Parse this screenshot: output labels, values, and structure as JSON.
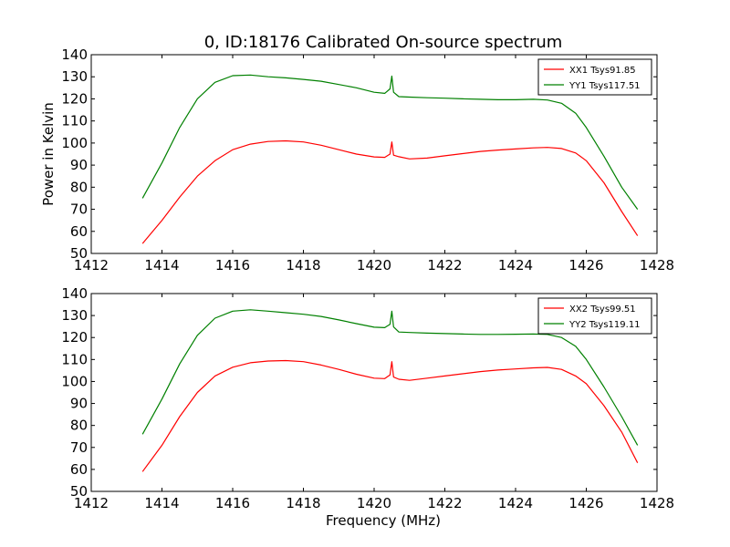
{
  "chart_data": [
    {
      "type": "line",
      "title": "0, ID:18176 Calibrated On-source spectrum",
      "xlabel": "",
      "ylabel": "Power in Kelvin",
      "xlim": [
        1412,
        1428
      ],
      "ylim": [
        50,
        140
      ],
      "xticks": [
        1412,
        1414,
        1416,
        1418,
        1420,
        1422,
        1424,
        1426,
        1428
      ],
      "yticks": [
        50,
        60,
        70,
        80,
        90,
        100,
        110,
        120,
        130,
        140
      ],
      "grid": false,
      "legend_position": "top-right",
      "series": [
        {
          "name": "XX1 Tsys91.85",
          "color": "#ff0000",
          "x": [
            1413.45,
            1414.0,
            1414.5,
            1415.0,
            1415.5,
            1416.0,
            1416.5,
            1417.0,
            1417.5,
            1418.0,
            1418.5,
            1419.0,
            1419.5,
            1420.0,
            1420.3,
            1420.45,
            1420.5,
            1420.55,
            1420.7,
            1421.0,
            1421.5,
            1422.0,
            1422.5,
            1423.0,
            1423.5,
            1424.0,
            1424.5,
            1424.9,
            1425.3,
            1425.7,
            1426.0,
            1426.5,
            1427.0,
            1427.45
          ],
          "y": [
            54.5,
            65,
            75.5,
            85,
            92,
            97,
            99.5,
            100.7,
            101,
            100.5,
            99,
            97,
            95,
            93.7,
            93.5,
            95,
            100.5,
            94.5,
            93.8,
            92.8,
            93.2,
            94.2,
            95.2,
            96.2,
            96.8,
            97.3,
            97.8,
            98,
            97.5,
            95.5,
            92,
            82,
            69,
            58
          ]
        },
        {
          "name": "YY1 Tsys117.51",
          "color": "#008000",
          "x": [
            1413.45,
            1414.0,
            1414.5,
            1415.0,
            1415.5,
            1416.0,
            1416.5,
            1417.0,
            1417.5,
            1418.0,
            1418.5,
            1419.0,
            1419.5,
            1420.0,
            1420.3,
            1420.45,
            1420.5,
            1420.55,
            1420.7,
            1421.0,
            1421.5,
            1422.0,
            1422.5,
            1423.0,
            1423.5,
            1424.0,
            1424.5,
            1424.9,
            1425.3,
            1425.7,
            1426.0,
            1426.5,
            1427.0,
            1427.45
          ],
          "y": [
            75,
            91,
            107,
            120,
            127.5,
            130.5,
            130.8,
            130,
            129.5,
            128.8,
            128,
            126.5,
            125,
            123,
            122.5,
            124.5,
            130.3,
            123,
            121,
            120.8,
            120.5,
            120.3,
            120,
            119.8,
            119.6,
            119.6,
            119.8,
            119.5,
            118,
            113.5,
            107,
            94,
            80,
            70
          ]
        }
      ]
    },
    {
      "type": "line",
      "title": "",
      "xlabel": "Frequency (MHz)",
      "ylabel": "",
      "xlim": [
        1412,
        1428
      ],
      "ylim": [
        50,
        140
      ],
      "xticks": [
        1412,
        1414,
        1416,
        1418,
        1420,
        1422,
        1424,
        1426,
        1428
      ],
      "yticks": [
        50,
        60,
        70,
        80,
        90,
        100,
        110,
        120,
        130,
        140
      ],
      "grid": false,
      "legend_position": "top-right",
      "series": [
        {
          "name": "XX2 Tsys99.51",
          "color": "#ff0000",
          "x": [
            1413.45,
            1414.0,
            1414.5,
            1415.0,
            1415.5,
            1416.0,
            1416.5,
            1417.0,
            1417.5,
            1418.0,
            1418.5,
            1419.0,
            1419.5,
            1420.0,
            1420.3,
            1420.45,
            1420.5,
            1420.55,
            1420.7,
            1421.0,
            1421.5,
            1422.0,
            1422.5,
            1423.0,
            1423.5,
            1424.0,
            1424.5,
            1424.9,
            1425.3,
            1425.7,
            1426.0,
            1426.5,
            1427.0,
            1427.45
          ],
          "y": [
            59,
            71,
            84,
            95,
            102.5,
            106.5,
            108.5,
            109.3,
            109.5,
            109,
            107.5,
            105.5,
            103.3,
            101.5,
            101.3,
            103,
            109,
            102,
            101,
            100.5,
            101.5,
            102.5,
            103.5,
            104.5,
            105.2,
            105.7,
            106.2,
            106.4,
            105.5,
            102.5,
            99,
            89,
            77,
            63
          ]
        },
        {
          "name": "YY2 Tsys119.11",
          "color": "#008000",
          "x": [
            1413.45,
            1414.0,
            1414.5,
            1415.0,
            1415.5,
            1416.0,
            1416.5,
            1417.0,
            1417.5,
            1418.0,
            1418.5,
            1419.0,
            1419.5,
            1420.0,
            1420.3,
            1420.45,
            1420.5,
            1420.55,
            1420.7,
            1421.0,
            1421.5,
            1422.0,
            1422.5,
            1423.0,
            1423.5,
            1424.0,
            1424.5,
            1424.9,
            1425.3,
            1425.7,
            1426.0,
            1426.5,
            1427.0,
            1427.45
          ],
          "y": [
            76,
            92,
            108,
            121,
            128.8,
            132,
            132.6,
            132,
            131.3,
            130.6,
            129.6,
            128,
            126.3,
            124.7,
            124.5,
            126,
            132,
            124.8,
            122.5,
            122.3,
            122,
            121.8,
            121.6,
            121.4,
            121.4,
            121.5,
            121.6,
            121.4,
            120,
            116,
            110,
            97.5,
            84,
            71
          ]
        }
      ]
    }
  ]
}
